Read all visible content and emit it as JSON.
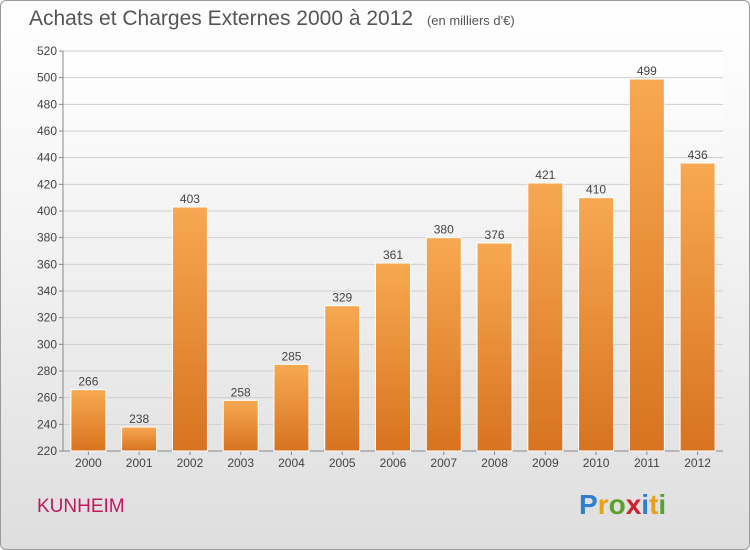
{
  "title": "Achats et Charges Externes 2000 à 2012",
  "subtitle": "(en milliers d'€)",
  "city": "KUNHEIM",
  "logo": {
    "letters": [
      "P",
      "r",
      "o",
      "x",
      "i",
      "t",
      "i"
    ],
    "colors": [
      "#2f7fd0",
      "#e8a01c",
      "#5aa02c",
      "#d0242a",
      "#2f7fd0",
      "#e8a01c",
      "#5aa02c"
    ]
  },
  "chart_data": {
    "type": "bar",
    "categories": [
      "2000",
      "2001",
      "2002",
      "2003",
      "2004",
      "2005",
      "2006",
      "2007",
      "2008",
      "2009",
      "2010",
      "2011",
      "2012"
    ],
    "values": [
      266,
      238,
      403,
      258,
      285,
      329,
      361,
      380,
      376,
      421,
      410,
      499,
      436
    ],
    "ylim": [
      220,
      520
    ],
    "yticks": [
      220,
      240,
      260,
      280,
      300,
      320,
      340,
      360,
      380,
      400,
      420,
      440,
      460,
      480,
      500,
      520
    ],
    "grid": true,
    "bar_color_top": "#f8a852",
    "bar_color_bottom": "#d8731f"
  }
}
